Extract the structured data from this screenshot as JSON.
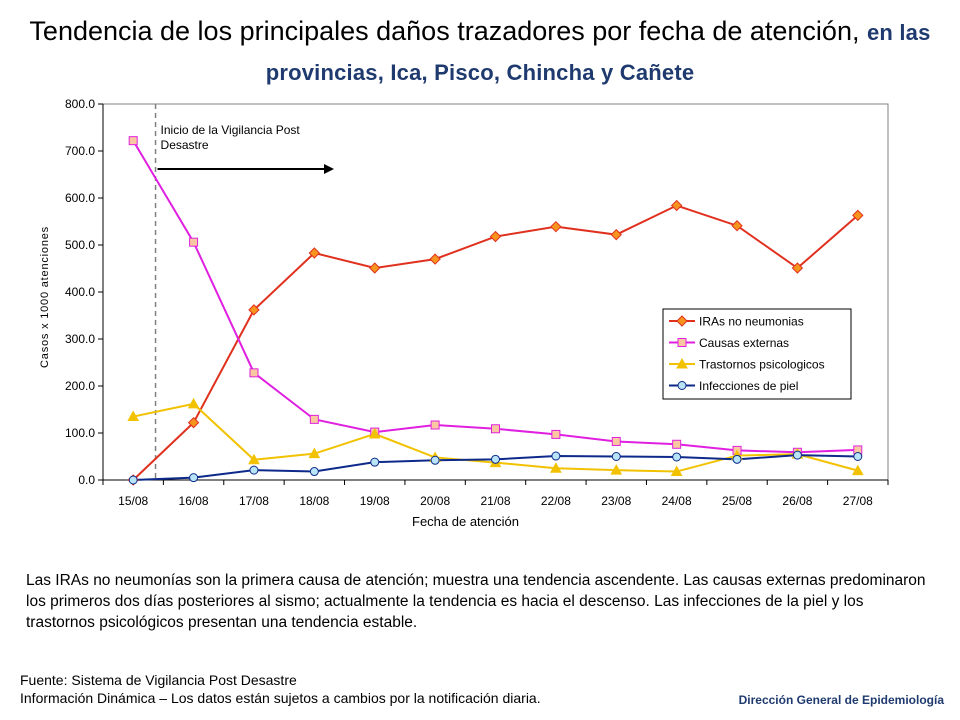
{
  "title": {
    "main": "Tendencia de los principales daños trazadores por fecha de atención,",
    "sub": "en las provincias, Ica, Pisco, Chincha y Cañete"
  },
  "chart_data": {
    "type": "line",
    "categories": [
      "15/08",
      "16/08",
      "17/08",
      "18/08",
      "19/08",
      "20/08",
      "21/08",
      "22/08",
      "23/08",
      "24/08",
      "25/08",
      "26/08",
      "27/08"
    ],
    "ylabel": "Casos x 1000 atenciones",
    "xlabel": "Fecha de atención",
    "ylim": [
      0,
      800
    ],
    "yticks": [
      "0.0",
      "100.0",
      "200.0",
      "300.0",
      "400.0",
      "500.0",
      "600.0",
      "700.0",
      "800.0"
    ],
    "annotation": [
      "Inicio de la Vigilancia Post",
      "Desastre"
    ],
    "legend_position": "right",
    "series": [
      {
        "name": "IRAs no neumonias",
        "color": "#e0301e",
        "marker": "diamond",
        "marker_fill": "#f7941d",
        "values": [
          0,
          122,
          362,
          483,
          451,
          470,
          518,
          539,
          522,
          584,
          541,
          451,
          563
        ]
      },
      {
        "name": "Causas externas",
        "color": "#e020e0",
        "marker": "square",
        "marker_fill": "#f9c8a0",
        "values": [
          722,
          506,
          228,
          129,
          102,
          117,
          109,
          97,
          82,
          76,
          63,
          59,
          64
        ]
      },
      {
        "name": "Trastornos psicologicos",
        "color": "#f2c200",
        "marker": "triangle",
        "marker_fill": "#f2c200",
        "values": [
          135,
          162,
          43,
          56,
          98,
          48,
          37,
          25,
          21,
          18,
          52,
          55,
          20
        ]
      },
      {
        "name": "Infecciones de piel",
        "color": "#0d2a8a",
        "marker": "circle",
        "marker_fill": "#b9e4f7",
        "values": [
          0,
          5,
          21,
          18,
          38,
          42,
          44,
          51,
          50,
          49,
          44,
          53,
          50
        ]
      }
    ]
  },
  "description": "Las IRAs no neumonías son la primera causa de atención; muestra una tendencia ascendente. Las causas externas predominaron los primeros dos días posteriores al sismo; actualmente la tendencia es hacia el descenso. Las infecciones de la piel y los trastornos psicológicos presentan una tendencia estable.",
  "source": {
    "line1": "Fuente: Sistema de Vigilancia Post Desastre",
    "line2": "Información Dinámica – Los datos están sujetos a cambios por la notificación diaria."
  },
  "department": "Dirección General de Epidemiología"
}
